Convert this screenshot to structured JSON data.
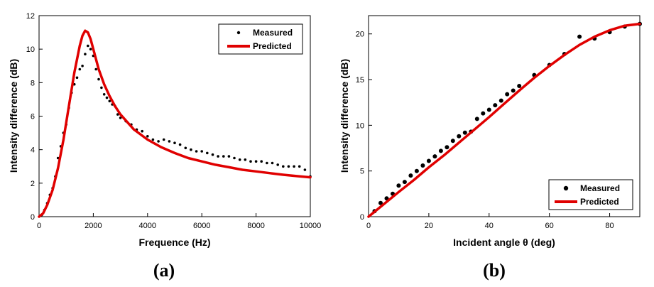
{
  "colors": {
    "measured": "#000000",
    "predicted": "#e00000",
    "axis": "#000000"
  },
  "chart_data": [
    {
      "type": "scatter+line",
      "caption": "(a)",
      "xlabel": "Frequence (Hz)",
      "ylabel": "Intensity difference (dB)",
      "xlim": [
        0,
        10000
      ],
      "ylim": [
        0,
        12
      ],
      "xticks": [
        0,
        2000,
        4000,
        6000,
        8000,
        10000
      ],
      "yticks": [
        0,
        2,
        4,
        6,
        8,
        10,
        12
      ],
      "legend": {
        "placement": "top-right",
        "entries": [
          "Measured",
          "Predicted"
        ]
      },
      "series": [
        {
          "name": "Measured",
          "kind": "points",
          "x": [
            100,
            200,
            300,
            400,
            500,
            600,
            700,
            800,
            900,
            1000,
            1100,
            1200,
            1300,
            1400,
            1500,
            1600,
            1700,
            1800,
            1900,
            2000,
            2100,
            2200,
            2300,
            2400,
            2500,
            2600,
            2700,
            2800,
            2900,
            3000,
            3200,
            3400,
            3600,
            3800,
            4000,
            4200,
            4400,
            4600,
            4800,
            5000,
            5200,
            5400,
            5600,
            5800,
            6000,
            6200,
            6400,
            6600,
            6800,
            7000,
            7200,
            7400,
            7600,
            7800,
            8000,
            8200,
            8400,
            8600,
            8800,
            9000,
            9200,
            9400,
            9600,
            9800,
            10000
          ],
          "y": [
            0.1,
            0.4,
            0.8,
            1.3,
            1.7,
            2.4,
            3.5,
            4.2,
            5.0,
            5.5,
            6.5,
            7.4,
            7.9,
            8.3,
            8.8,
            9.0,
            9.7,
            10.2,
            10.0,
            9.6,
            8.8,
            8.2,
            7.7,
            7.3,
            7.1,
            6.9,
            6.7,
            6.6,
            6.1,
            5.9,
            5.7,
            5.5,
            5.2,
            5.1,
            4.8,
            4.6,
            4.5,
            4.6,
            4.5,
            4.4,
            4.3,
            4.1,
            4.0,
            3.9,
            3.9,
            3.8,
            3.7,
            3.6,
            3.6,
            3.6,
            3.5,
            3.4,
            3.4,
            3.3,
            3.3,
            3.3,
            3.2,
            3.2,
            3.1,
            3.0,
            3.0,
            3.0,
            3.0,
            2.8,
            2.4
          ]
        },
        {
          "name": "Predicted",
          "kind": "line",
          "x": [
            0,
            150,
            300,
            500,
            700,
            900,
            1100,
            1300,
            1500,
            1600,
            1700,
            1800,
            1900,
            2000,
            2200,
            2400,
            2600,
            2800,
            3000,
            3500,
            4000,
            4500,
            5000,
            5500,
            6000,
            6500,
            7000,
            7500,
            8000,
            8500,
            9000,
            9500,
            10000
          ],
          "y": [
            0,
            0.2,
            0.7,
            1.6,
            2.9,
            4.6,
            6.6,
            8.6,
            10.2,
            10.8,
            11.1,
            11.0,
            10.6,
            10.0,
            8.8,
            7.9,
            7.2,
            6.6,
            6.1,
            5.2,
            4.6,
            4.15,
            3.8,
            3.5,
            3.3,
            3.1,
            2.95,
            2.8,
            2.7,
            2.6,
            2.5,
            2.42,
            2.35
          ]
        }
      ]
    },
    {
      "type": "scatter+line",
      "caption": "(b)",
      "xlabel": "Incident angle θ (deg)",
      "ylabel": "Intensity difference (dB)",
      "xlim": [
        0,
        90
      ],
      "ylim": [
        0,
        22
      ],
      "xticks": [
        0,
        20,
        40,
        60,
        80
      ],
      "yticks": [
        0,
        5,
        10,
        15,
        20
      ],
      "legend": {
        "placement": "bottom-right",
        "entries": [
          "Measured",
          "Predicted"
        ]
      },
      "series": [
        {
          "name": "Measured",
          "kind": "points",
          "x": [
            2,
            4,
            6,
            8,
            10,
            12,
            14,
            16,
            18,
            20,
            22,
            24,
            26,
            28,
            30,
            32,
            34,
            36,
            38,
            40,
            42,
            44,
            46,
            48,
            50,
            55,
            60,
            65,
            70,
            75,
            80,
            85,
            90
          ],
          "y": [
            0.6,
            1.5,
            2.0,
            2.5,
            3.4,
            3.8,
            4.5,
            5.0,
            5.6,
            6.1,
            6.6,
            7.2,
            7.6,
            8.3,
            8.8,
            9.2,
            9.3,
            10.7,
            11.3,
            11.7,
            12.2,
            12.7,
            13.4,
            13.8,
            14.3,
            15.5,
            16.6,
            17.8,
            19.7,
            19.5,
            20.2,
            20.8,
            21.1
          ]
        },
        {
          "name": "Predicted",
          "kind": "line",
          "x": [
            0,
            5,
            10,
            15,
            20,
            25,
            30,
            35,
            40,
            45,
            50,
            55,
            60,
            65,
            70,
            75,
            80,
            85,
            90
          ],
          "y": [
            0,
            1.35,
            2.7,
            4.0,
            5.4,
            6.7,
            8.1,
            9.5,
            10.9,
            12.35,
            13.8,
            15.2,
            16.5,
            17.7,
            18.8,
            19.7,
            20.4,
            20.9,
            21.1
          ]
        }
      ]
    }
  ]
}
